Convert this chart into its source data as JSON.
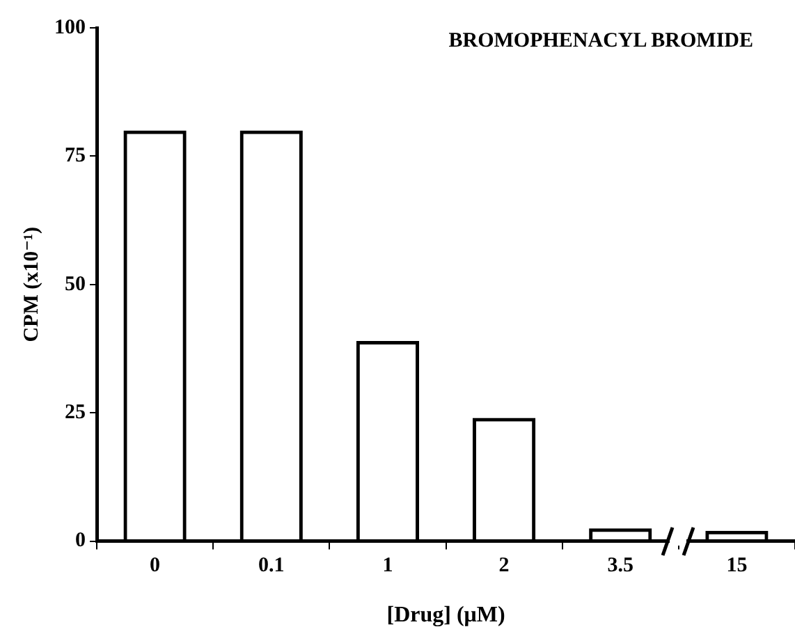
{
  "chart_data": {
    "type": "bar",
    "title": "BROMOPHENACYL BROMIDE",
    "xlabel": "[Drug] (μM)",
    "ylabel": "CPM (x10⁻¹)",
    "categories": [
      "0",
      "0.1",
      "1",
      "2",
      "3.5",
      "15"
    ],
    "values": [
      80,
      80,
      39,
      24,
      2.5,
      2
    ],
    "color": "#000000",
    "ylim": [
      0,
      100
    ],
    "yticks": [
      0,
      25,
      50,
      75,
      100
    ],
    "grid": false,
    "legend": false
  }
}
